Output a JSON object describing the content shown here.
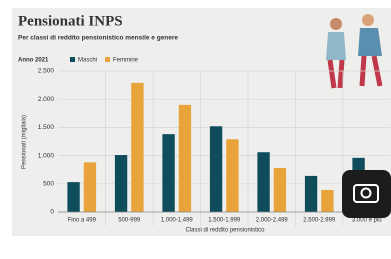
{
  "chart_data": {
    "type": "bar",
    "title": "Pensionati INPS",
    "subtitle": "Per classi di reddito pensionistico mensile e genere",
    "year_label": "Anno 2021",
    "y_label": "Pensionati (migliaia)",
    "x_label": "Classi di reddito pensionistico",
    "categories": [
      "Fino a 499",
      "500-999",
      "1.000-1.499",
      "1.500-1.999",
      "2.000-2.499",
      "2.500-2.999",
      "3.000 e più"
    ],
    "series": [
      {
        "name": "Maschi",
        "color": "#0f4c5c",
        "values": [
          530,
          1010,
          1380,
          1520,
          1060,
          640,
          960
        ]
      },
      {
        "name": "Femmine",
        "color": "#e8a33a",
        "values": [
          880,
          2290,
          1900,
          1290,
          780,
          390,
          null
        ]
      }
    ],
    "ylim": [
      0,
      2500
    ],
    "yticks": [
      0,
      500,
      {
        "value": 1000,
        "label": "1.000"
      },
      {
        "value": 1500,
        "label": "1.500"
      },
      {
        "value": 2000,
        "label": "2.000"
      },
      {
        "value": 2500,
        "label": "2.500"
      }
    ],
    "grid": true
  }
}
